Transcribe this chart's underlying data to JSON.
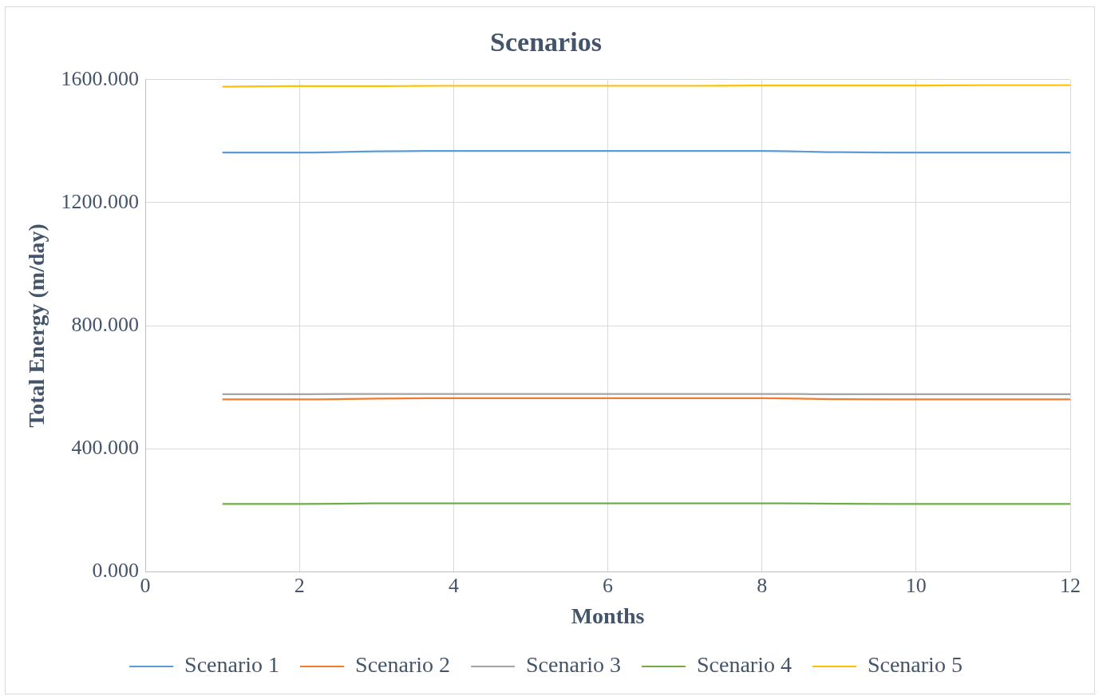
{
  "chart_data": {
    "type": "line",
    "title": "Scenarios",
    "xlabel": "Months",
    "ylabel": "Total Energy (m/day)",
    "x": [
      1,
      2,
      3,
      4,
      5,
      6,
      7,
      8,
      9,
      10,
      11,
      12
    ],
    "series": [
      {
        "name": "Scenario 1",
        "color": "#5b9bd5",
        "values": [
          1363,
          1363,
          1367,
          1368,
          1368,
          1368,
          1368,
          1368,
          1364,
          1363,
          1363,
          1363
        ]
      },
      {
        "name": "Scenario 2",
        "color": "#ed7d31",
        "values": [
          560,
          560,
          563,
          564,
          564,
          564,
          564,
          564,
          561,
          560,
          560,
          560
        ]
      },
      {
        "name": "Scenario 3",
        "color": "#a5a5a5",
        "values": [
          577,
          577,
          578,
          578,
          578,
          578,
          578,
          578,
          577,
          577,
          577,
          577
        ]
      },
      {
        "name": "Scenario 4",
        "color": "#70ad47",
        "values": [
          220,
          220,
          222,
          222,
          222,
          222,
          222,
          222,
          221,
          220,
          220,
          220
        ]
      },
      {
        "name": "Scenario 5",
        "color": "#ffc000",
        "values": [
          1577,
          1579,
          1579,
          1580,
          1580,
          1580,
          1580,
          1581,
          1581,
          1581,
          1582,
          1582
        ]
      }
    ],
    "xlim": [
      0,
      12
    ],
    "xticks": [
      0,
      2,
      4,
      6,
      8,
      10,
      12
    ],
    "ylim": [
      0,
      1600
    ],
    "yticks": [
      {
        "value": 0,
        "label": "0.000"
      },
      {
        "value": 400,
        "label": "400.000"
      },
      {
        "value": 800,
        "label": "800.000"
      },
      {
        "value": 1200,
        "label": "1200.000"
      },
      {
        "value": 1600,
        "label": "1600.000"
      }
    ],
    "grid": true,
    "legend": "bottom",
    "marker": "none",
    "line_style": "solid"
  }
}
